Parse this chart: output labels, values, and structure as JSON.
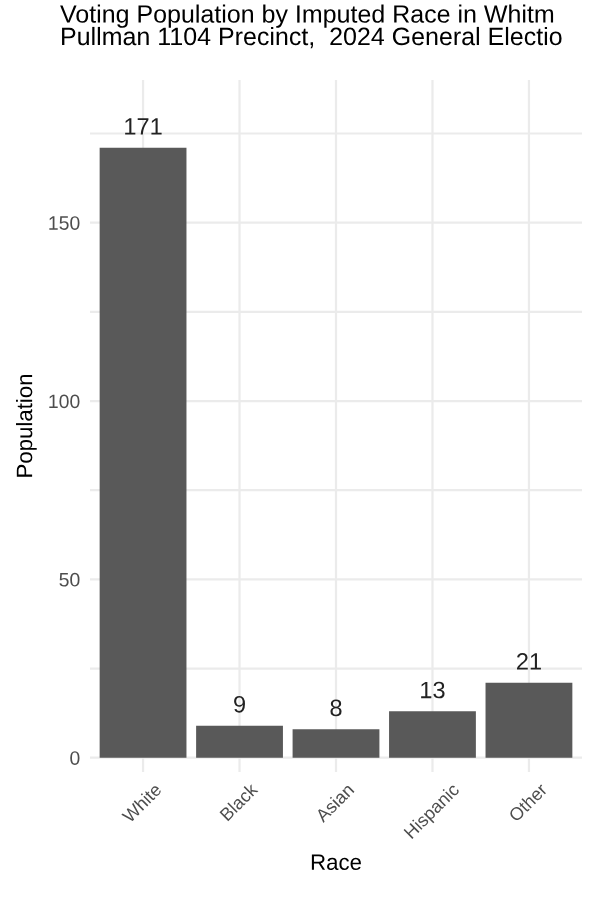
{
  "chart_data": {
    "type": "bar",
    "title": "Voting Population by Imputed Race in Whitm\nPullman 1104 Precinct,  2024 General Electio",
    "xlabel": "Race",
    "ylabel": "Population",
    "categories": [
      "White",
      "Black",
      "Asian",
      "Hispanic",
      "Other"
    ],
    "values": [
      171,
      9,
      8,
      13,
      21
    ],
    "color": "#595959",
    "data_labels": true,
    "ylim": [
      -4,
      190
    ],
    "yticks": [
      0,
      {
        "value": 25,
        "label": null
      },
      50,
      {
        "value": 75,
        "label": null
      },
      100,
      {
        "value": 125,
        "label": null
      },
      150,
      {
        "value": 175,
        "label": null
      }
    ],
    "grid": true,
    "legend": false
  }
}
